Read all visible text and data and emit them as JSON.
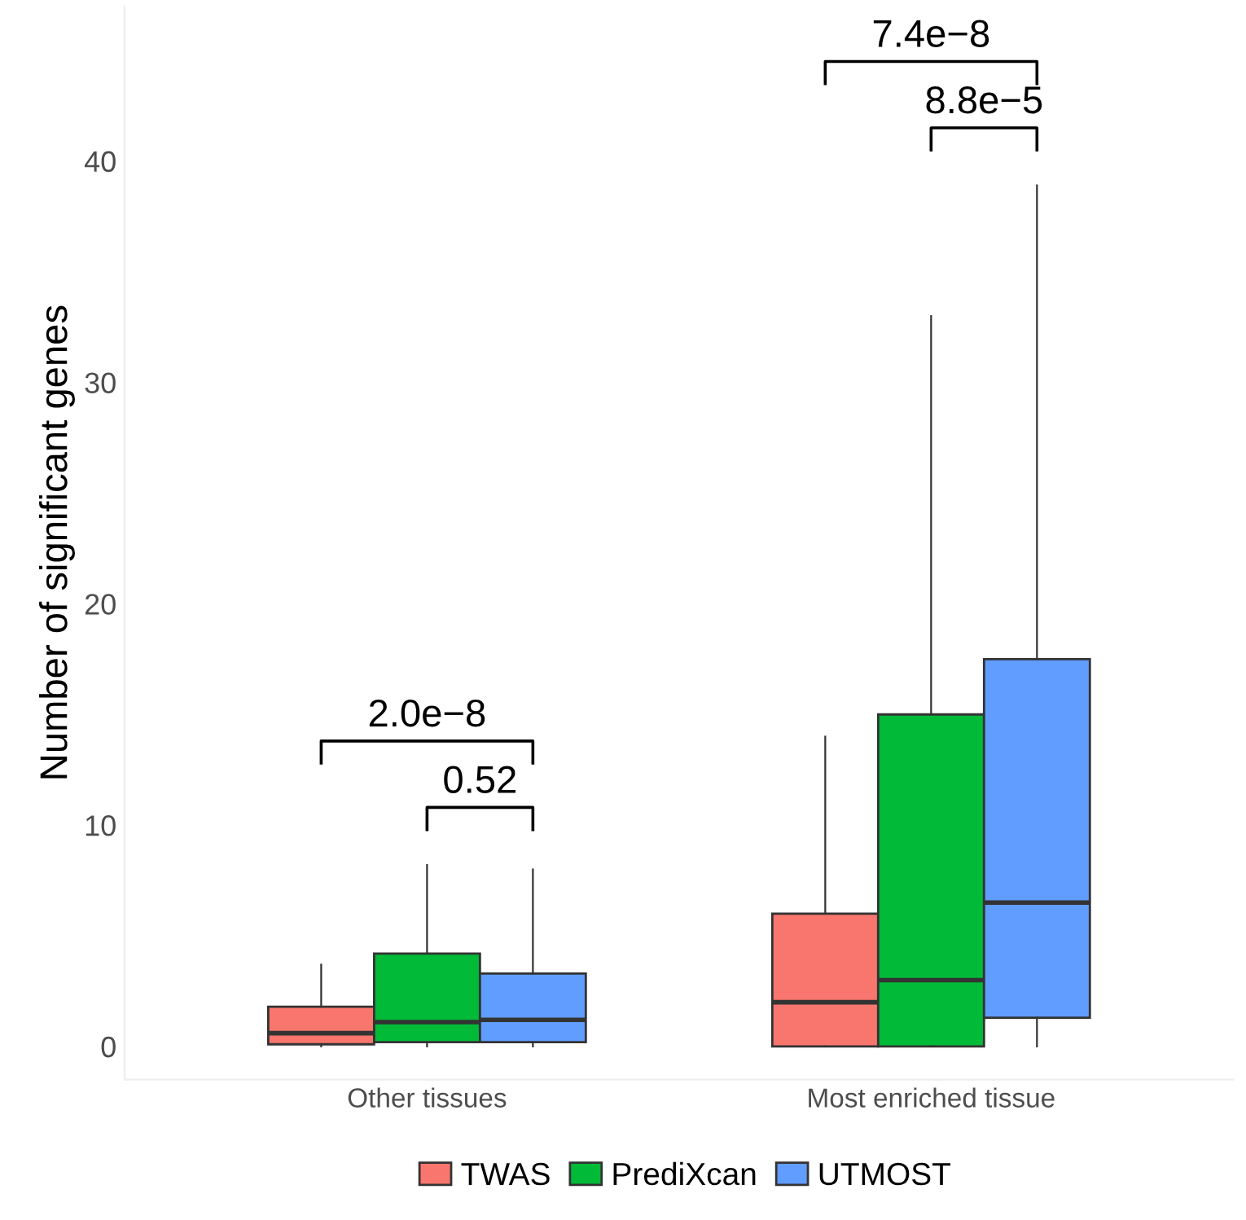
{
  "chart_data": {
    "type": "box",
    "ylabel": "Number of significant genes",
    "categories": [
      "Other tissues",
      "Most enriched tissue"
    ],
    "series": [
      {
        "name": "TWAS",
        "color": "#f8766d",
        "boxes": [
          {
            "low": 0,
            "q1": 0.1,
            "median": 0.6,
            "q3": 1.8,
            "high": 3.7
          },
          {
            "low": 0,
            "q1": 0,
            "median": 2.0,
            "q3": 6.0,
            "high": 14.0
          }
        ]
      },
      {
        "name": "PrediXcan",
        "color": "#00ba38",
        "boxes": [
          {
            "low": 0,
            "q1": 0.2,
            "median": 1.1,
            "q3": 4.2,
            "high": 8.2
          },
          {
            "low": 0,
            "q1": 0,
            "median": 3.0,
            "q3": 15.0,
            "high": 33.0
          }
        ]
      },
      {
        "name": "UTMOST",
        "color": "#619cff",
        "boxes": [
          {
            "low": 0,
            "q1": 0.2,
            "median": 1.2,
            "q3": 3.3,
            "high": 8.0
          },
          {
            "low": 0,
            "q1": 1.3,
            "median": 6.5,
            "q3": 17.5,
            "high": 38.9
          }
        ]
      }
    ],
    "ylim": [
      -1.5,
      47
    ],
    "yticks": [
      0,
      10,
      20,
      30,
      40
    ],
    "grid": false,
    "legend": "bottom",
    "annotations": [
      "2.0e−8",
      "0.52",
      "7.4e−8",
      "8.8e−5"
    ]
  }
}
